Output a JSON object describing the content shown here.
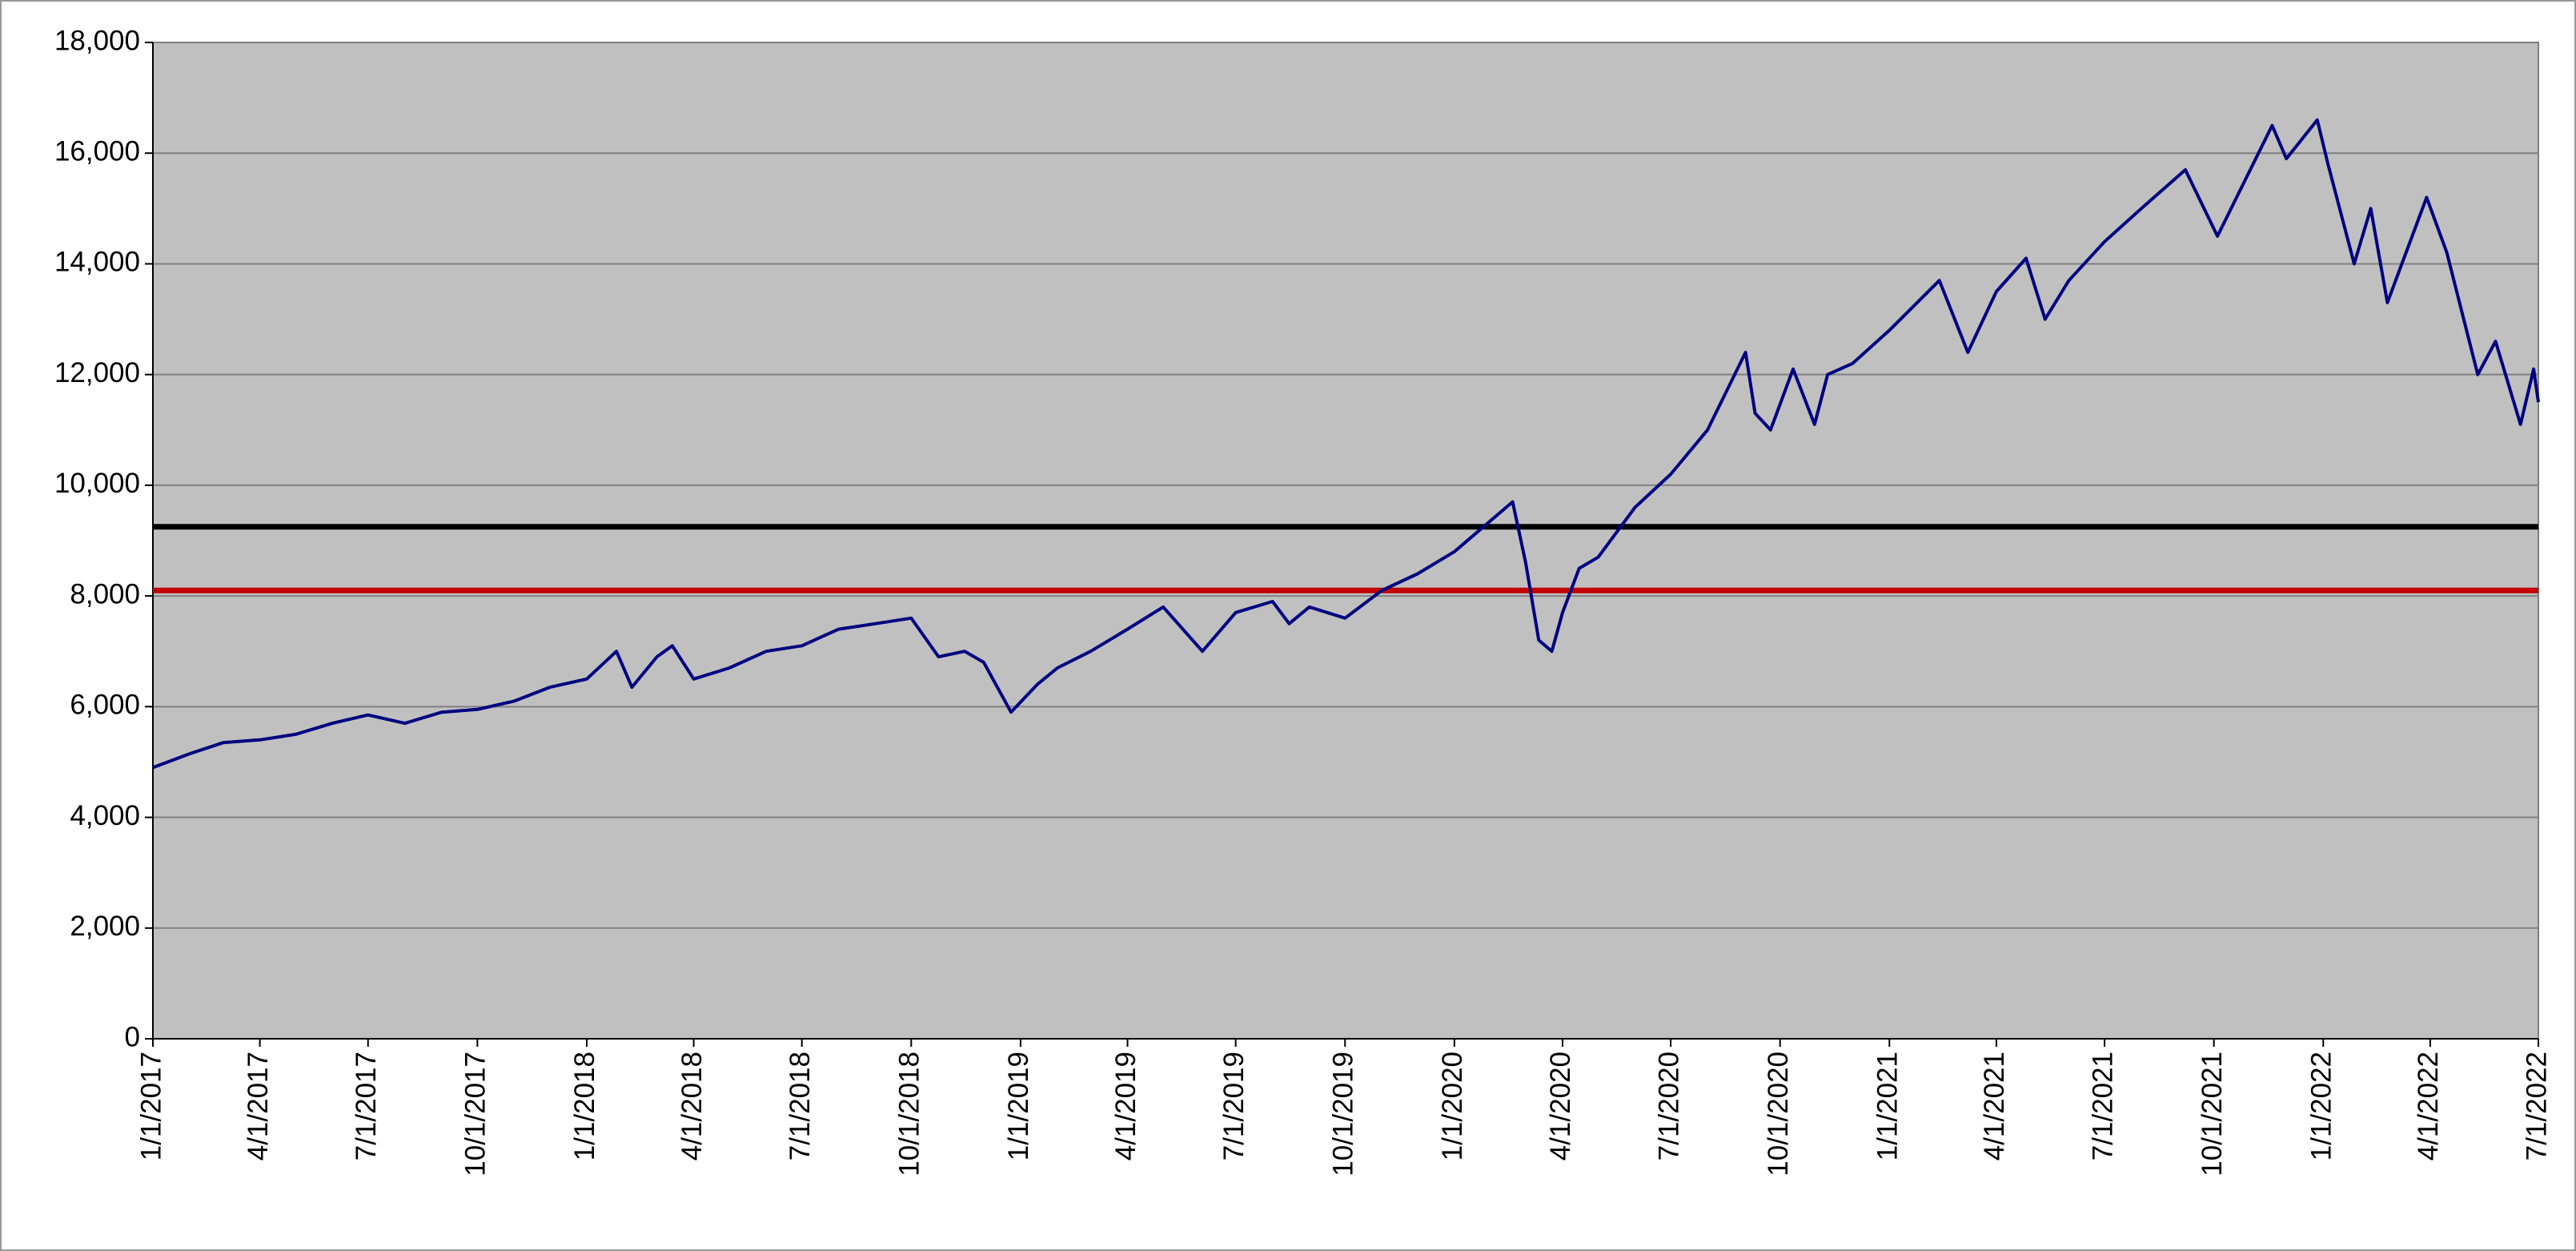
{
  "chart_data": {
    "type": "line",
    "x": [
      "2017-01-01",
      "2017-02-01",
      "2017-03-01",
      "2017-04-01",
      "2017-05-01",
      "2017-06-01",
      "2017-07-01",
      "2017-08-01",
      "2017-09-01",
      "2017-10-01",
      "2017-11-01",
      "2017-12-01",
      "2018-01-01",
      "2018-01-26",
      "2018-02-08",
      "2018-03-01",
      "2018-03-14",
      "2018-04-01",
      "2018-05-01",
      "2018-06-01",
      "2018-07-01",
      "2018-08-01",
      "2018-09-01",
      "2018-10-01",
      "2018-10-24",
      "2018-11-15",
      "2018-12-01",
      "2018-12-24",
      "2019-01-15",
      "2019-02-01",
      "2019-03-01",
      "2019-04-01",
      "2019-05-01",
      "2019-06-03",
      "2019-07-01",
      "2019-08-01",
      "2019-08-15",
      "2019-09-01",
      "2019-10-01",
      "2019-11-01",
      "2019-12-01",
      "2020-01-01",
      "2020-02-19",
      "2020-03-01",
      "2020-03-12",
      "2020-03-23",
      "2020-04-01",
      "2020-04-15",
      "2020-05-01",
      "2020-06-01",
      "2020-07-01",
      "2020-08-01",
      "2020-09-02",
      "2020-09-10",
      "2020-09-23",
      "2020-10-12",
      "2020-10-30",
      "2020-11-10",
      "2020-12-01",
      "2021-01-01",
      "2021-02-12",
      "2021-03-08",
      "2021-04-01",
      "2021-04-26",
      "2021-05-12",
      "2021-06-01",
      "2021-07-01",
      "2021-08-01",
      "2021-09-07",
      "2021-10-04",
      "2021-11-19",
      "2021-12-01",
      "2021-12-27",
      "2022-01-05",
      "2022-01-27",
      "2022-02-10",
      "2022-02-24",
      "2022-03-29",
      "2022-04-15",
      "2022-05-11",
      "2022-05-26",
      "2022-06-16",
      "2022-06-27",
      "2022-07-01"
    ],
    "series": [
      {
        "color": "#000080",
        "values": [
          4900,
          5150,
          5350,
          5400,
          5500,
          5700,
          5850,
          5700,
          5900,
          5950,
          6100,
          6350,
          6500,
          7000,
          6350,
          6900,
          7100,
          6500,
          6700,
          7000,
          7100,
          7400,
          7500,
          7600,
          6900,
          7000,
          6800,
          5900,
          6400,
          6700,
          7000,
          7400,
          7800,
          7000,
          7700,
          7900,
          7500,
          7800,
          7600,
          8100,
          8400,
          8800,
          9700,
          8600,
          7200,
          7000,
          7700,
          8500,
          8700,
          9600,
          10200,
          11000,
          12400,
          11300,
          11000,
          12100,
          11100,
          12000,
          12200,
          12800,
          13700,
          12400,
          13500,
          14100,
          13000,
          13700,
          14400,
          15000,
          15700,
          14500,
          16500,
          15900,
          16600,
          15800,
          14000,
          15000,
          13300,
          15200,
          14200,
          12000,
          12600,
          11100,
          12100,
          11500
        ]
      }
    ],
    "reference_lines": [
      {
        "value": 9250,
        "color": "#000000"
      },
      {
        "value": 8100,
        "color": "#c00000"
      }
    ],
    "xlim": [
      "2017-01-01",
      "2022-07-01"
    ],
    "xticks": [
      {
        "value": "2017-01-01",
        "label": "1/1/2017"
      },
      {
        "value": "2017-04-01",
        "label": "4/1/2017"
      },
      {
        "value": "2017-07-01",
        "label": "7/1/2017"
      },
      {
        "value": "2017-10-01",
        "label": "10/1/2017"
      },
      {
        "value": "2018-01-01",
        "label": "1/1/2018"
      },
      {
        "value": "2018-04-01",
        "label": "4/1/2018"
      },
      {
        "value": "2018-07-01",
        "label": "7/1/2018"
      },
      {
        "value": "2018-10-01",
        "label": "10/1/2018"
      },
      {
        "value": "2019-01-01",
        "label": "1/1/2019"
      },
      {
        "value": "2019-04-01",
        "label": "4/1/2019"
      },
      {
        "value": "2019-07-01",
        "label": "7/1/2019"
      },
      {
        "value": "2019-10-01",
        "label": "10/1/2019"
      },
      {
        "value": "2020-01-01",
        "label": "1/1/2020"
      },
      {
        "value": "2020-04-01",
        "label": "4/1/2020"
      },
      {
        "value": "2020-07-01",
        "label": "7/1/2020"
      },
      {
        "value": "2020-10-01",
        "label": "10/1/2020"
      },
      {
        "value": "2021-01-01",
        "label": "1/1/2021"
      },
      {
        "value": "2021-04-01",
        "label": "4/1/2021"
      },
      {
        "value": "2021-07-01",
        "label": "7/1/2021"
      },
      {
        "value": "2021-10-01",
        "label": "10/1/2021"
      },
      {
        "value": "2022-01-01",
        "label": "1/1/2022"
      },
      {
        "value": "2022-04-01",
        "label": "4/1/2022"
      },
      {
        "value": "2022-07-01",
        "label": "7/1/2022"
      }
    ],
    "ylim": [
      0,
      18000
    ],
    "yticks": [
      0,
      {
        "value": 2000,
        "label": "2,000"
      },
      {
        "value": 4000,
        "label": "4,000"
      },
      {
        "value": 6000,
        "label": "6,000"
      },
      {
        "value": 8000,
        "label": "8,000"
      },
      {
        "value": 10000,
        "label": "10,000"
      },
      {
        "value": 12000,
        "label": "12,000"
      },
      {
        "value": 14000,
        "label": "14,000"
      },
      {
        "value": 16000,
        "label": "16,000"
      },
      {
        "value": 18000,
        "label": "18,000"
      }
    ],
    "grid": true,
    "plot_background": "#c0c0c0"
  }
}
